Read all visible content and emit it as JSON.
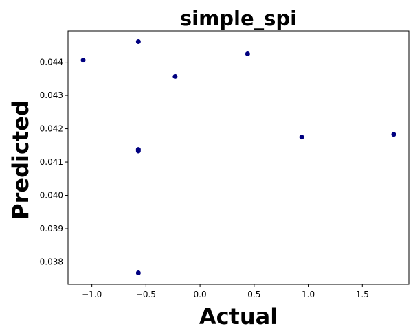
{
  "chart_data": {
    "type": "scatter",
    "title": "simple_spi",
    "xlabel": "Actual",
    "ylabel": "Predicted",
    "xlim": [
      -1.22,
      1.93
    ],
    "ylim": [
      0.03733,
      0.04494
    ],
    "xticks": [
      -1.0,
      -0.5,
      0.0,
      0.5,
      1.0,
      1.5
    ],
    "xtick_labels": [
      "−1.0",
      "−0.5",
      "0.0",
      "0.5",
      "1.0",
      "1.5"
    ],
    "yticks": [
      0.038,
      0.039,
      0.04,
      0.041,
      0.042,
      0.043,
      0.044
    ],
    "ytick_labels": [
      "0.038",
      "0.039",
      "0.040",
      "0.041",
      "0.042",
      "0.043",
      "0.044"
    ],
    "grid": false,
    "marker_color": "#000080",
    "points": [
      {
        "x": -1.08,
        "y": 0.04406
      },
      {
        "x": -0.57,
        "y": 0.04462
      },
      {
        "x": -0.23,
        "y": 0.04357
      },
      {
        "x": 0.44,
        "y": 0.04425
      },
      {
        "x": -0.57,
        "y": 0.04138
      },
      {
        "x": -0.57,
        "y": 0.04133
      },
      {
        "x": 0.94,
        "y": 0.04175
      },
      {
        "x": 1.79,
        "y": 0.04183
      },
      {
        "x": -0.57,
        "y": 0.03767
      }
    ]
  }
}
